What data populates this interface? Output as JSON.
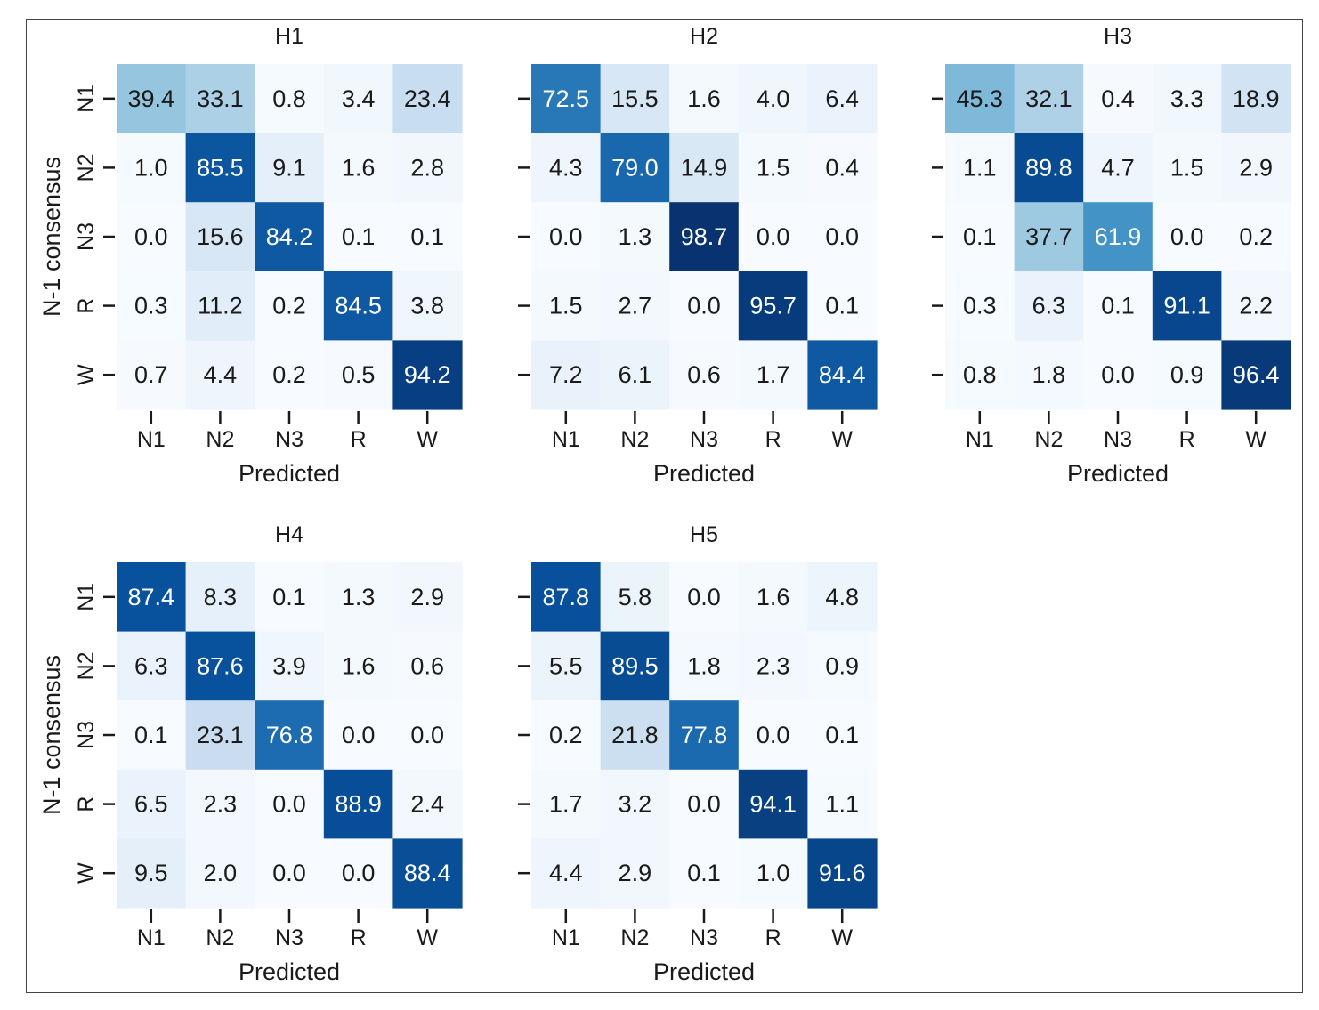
{
  "chart_data": [
    {
      "type": "heatmap",
      "title": "H1",
      "xlabel": "Predicted",
      "ylabel": "N-1 consensus",
      "x_categories": [
        "N1",
        "N2",
        "N3",
        "R",
        "W"
      ],
      "y_categories": [
        "N1",
        "N2",
        "N3",
        "R",
        "W"
      ],
      "values": [
        [
          39.4,
          33.1,
          0.8,
          3.4,
          23.4
        ],
        [
          1.0,
          85.5,
          9.1,
          1.6,
          2.8
        ],
        [
          0.0,
          15.6,
          84.2,
          0.1,
          0.1
        ],
        [
          0.3,
          11.2,
          0.2,
          84.5,
          3.8
        ],
        [
          0.7,
          4.4,
          0.2,
          0.5,
          94.2
        ]
      ],
      "colormap": "Blues",
      "vmin": 0,
      "vmax": 100,
      "show_y_tick_labels": true
    },
    {
      "type": "heatmap",
      "title": "H2",
      "xlabel": "Predicted",
      "ylabel": "",
      "x_categories": [
        "N1",
        "N2",
        "N3",
        "R",
        "W"
      ],
      "y_categories": [
        "N1",
        "N2",
        "N3",
        "R",
        "W"
      ],
      "values": [
        [
          72.5,
          15.5,
          1.6,
          4.0,
          6.4
        ],
        [
          4.3,
          79.0,
          14.9,
          1.5,
          0.4
        ],
        [
          0.0,
          1.3,
          98.7,
          0.0,
          0.0
        ],
        [
          1.5,
          2.7,
          0.0,
          95.7,
          0.1
        ],
        [
          7.2,
          6.1,
          0.6,
          1.7,
          84.4
        ]
      ],
      "colormap": "Blues",
      "vmin": 0,
      "vmax": 100,
      "show_y_tick_labels": false
    },
    {
      "type": "heatmap",
      "title": "H3",
      "xlabel": "Predicted",
      "ylabel": "",
      "x_categories": [
        "N1",
        "N2",
        "N3",
        "R",
        "W"
      ],
      "y_categories": [
        "N1",
        "N2",
        "N3",
        "R",
        "W"
      ],
      "values": [
        [
          45.3,
          32.1,
          0.4,
          3.3,
          18.9
        ],
        [
          1.1,
          89.8,
          4.7,
          1.5,
          2.9
        ],
        [
          0.1,
          37.7,
          61.9,
          0.0,
          0.2
        ],
        [
          0.3,
          6.3,
          0.1,
          91.1,
          2.2
        ],
        [
          0.8,
          1.8,
          0.0,
          0.9,
          96.4
        ]
      ],
      "colormap": "Blues",
      "vmin": 0,
      "vmax": 100,
      "show_y_tick_labels": false
    },
    {
      "type": "heatmap",
      "title": "H4",
      "xlabel": "Predicted",
      "ylabel": "N-1 consensus",
      "x_categories": [
        "N1",
        "N2",
        "N3",
        "R",
        "W"
      ],
      "y_categories": [
        "N1",
        "N2",
        "N3",
        "R",
        "W"
      ],
      "values": [
        [
          87.4,
          8.3,
          0.1,
          1.3,
          2.9
        ],
        [
          6.3,
          87.6,
          3.9,
          1.6,
          0.6
        ],
        [
          0.1,
          23.1,
          76.8,
          0.0,
          0.0
        ],
        [
          6.5,
          2.3,
          0.0,
          88.9,
          2.4
        ],
        [
          9.5,
          2.0,
          0.0,
          0.0,
          88.4
        ]
      ],
      "colormap": "Blues",
      "vmin": 0,
      "vmax": 100,
      "show_y_tick_labels": true
    },
    {
      "type": "heatmap",
      "title": "H5",
      "xlabel": "Predicted",
      "ylabel": "",
      "x_categories": [
        "N1",
        "N2",
        "N3",
        "R",
        "W"
      ],
      "y_categories": [
        "N1",
        "N2",
        "N3",
        "R",
        "W"
      ],
      "values": [
        [
          87.8,
          5.8,
          0.0,
          1.6,
          4.8
        ],
        [
          5.5,
          89.5,
          1.8,
          2.3,
          0.9
        ],
        [
          0.2,
          21.8,
          77.8,
          0.0,
          0.1
        ],
        [
          1.7,
          3.2,
          0.0,
          94.1,
          1.1
        ],
        [
          4.4,
          2.9,
          0.1,
          1.0,
          91.6
        ]
      ],
      "colormap": "Blues",
      "vmin": 0,
      "vmax": 100,
      "show_y_tick_labels": false
    }
  ]
}
